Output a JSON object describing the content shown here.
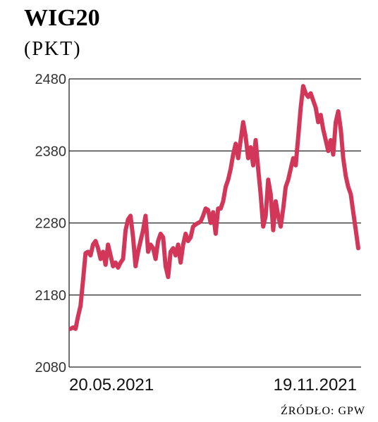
{
  "chart_data": {
    "type": "line",
    "title": "WIG20",
    "subtitle": "(PKT)",
    "source": "ŹRÓDŁO: GPW",
    "categories": [
      "20.05.2021",
      null,
      null,
      null,
      null,
      null,
      null,
      null,
      null,
      null,
      null,
      null,
      null,
      null,
      null,
      null,
      null,
      null,
      null,
      null,
      null,
      null,
      null,
      null,
      null,
      null,
      null,
      null,
      null,
      null,
      null,
      null,
      null,
      null,
      null,
      null,
      null,
      null,
      null,
      null,
      null,
      null,
      null,
      null,
      null,
      null,
      null,
      null,
      null,
      null,
      null,
      null,
      null,
      null,
      null,
      null,
      null,
      null,
      null,
      null,
      null,
      null,
      null,
      null,
      null,
      null,
      null,
      null,
      null,
      null,
      null,
      null,
      null,
      null,
      null,
      null,
      null,
      null,
      null,
      null,
      null,
      null,
      null,
      null,
      null,
      null,
      null,
      null,
      null,
      null,
      null,
      null,
      null,
      null,
      null,
      null,
      null,
      null,
      null,
      null,
      null,
      null,
      null,
      null,
      null,
      null,
      null,
      null,
      null,
      null,
      null,
      null,
      null,
      null,
      null,
      "19.11.2021"
    ],
    "values": [
      2133,
      2135,
      2133,
      2150,
      2165,
      2200,
      2238,
      2240,
      2235,
      2250,
      2255,
      2245,
      2230,
      2240,
      2222,
      2250,
      2235,
      2220,
      2225,
      2218,
      2225,
      2230,
      2270,
      2285,
      2290,
      2260,
      2220,
      2240,
      2255,
      2270,
      2290,
      2240,
      2250,
      2245,
      2230,
      2255,
      2265,
      2260,
      2220,
      2205,
      2240,
      2245,
      2235,
      2250,
      2225,
      2250,
      2265,
      2255,
      2260,
      2275,
      2278,
      2280,
      2282,
      2290,
      2300,
      2298,
      2280,
      2295,
      2265,
      2300,
      2300,
      2310,
      2330,
      2340,
      2355,
      2375,
      2390,
      2370,
      2395,
      2420,
      2400,
      2370,
      2385,
      2360,
      2395,
      2355,
      2320,
      2275,
      2290,
      2340,
      2320,
      2270,
      2310,
      2290,
      2275,
      2300,
      2330,
      2340,
      2355,
      2370,
      2360,
      2400,
      2440,
      2470,
      2460,
      2455,
      2460,
      2450,
      2440,
      2420,
      2430,
      2410,
      2395,
      2380,
      2395,
      2375,
      2420,
      2435,
      2410,
      2370,
      2345,
      2330,
      2320,
      2295,
      2270,
      2245
    ],
    "color": "#d2375a",
    "ylim": [
      2080,
      2480
    ],
    "yticks": [
      2080,
      2180,
      2280,
      2380,
      2480
    ],
    "grid": true
  }
}
